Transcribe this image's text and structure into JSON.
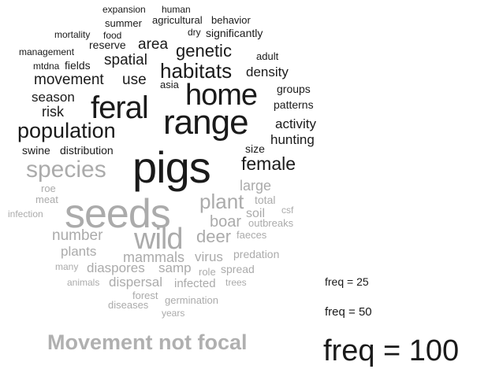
{
  "focal_words": [
    "expansion",
    "human",
    "summer",
    "agricultural",
    "behavior",
    "mortality",
    "food",
    "dry",
    "significantly",
    "management",
    "reserve",
    "area",
    "genetic",
    "adult",
    "mtdna",
    "fields",
    "spatial",
    "habitats",
    "density",
    "movement",
    "use",
    "asia",
    "groups",
    "home",
    "season",
    "feral",
    "patterns",
    "risk",
    "range",
    "activity",
    "population",
    "hunting",
    "swine",
    "distribution",
    "size",
    "pigs",
    "female"
  ],
  "not_focal_words": [
    "species",
    "large",
    "roe",
    "meat",
    "total",
    "plant",
    "csf",
    "infection",
    "seeds",
    "soil",
    "boar",
    "outbreaks",
    "number",
    "deer",
    "faeces",
    "wild",
    "plants",
    "predation",
    "mammals",
    "virus",
    "many",
    "diaspores",
    "samp",
    "role",
    "spread",
    "animals",
    "dispersal",
    "infected",
    "trees",
    "forest",
    "germination",
    "diseases",
    "years"
  ],
  "not_focal_label": "Movement not focal",
  "legend": [
    "freq = 25",
    "freq = 50",
    "freq = 100"
  ]
}
